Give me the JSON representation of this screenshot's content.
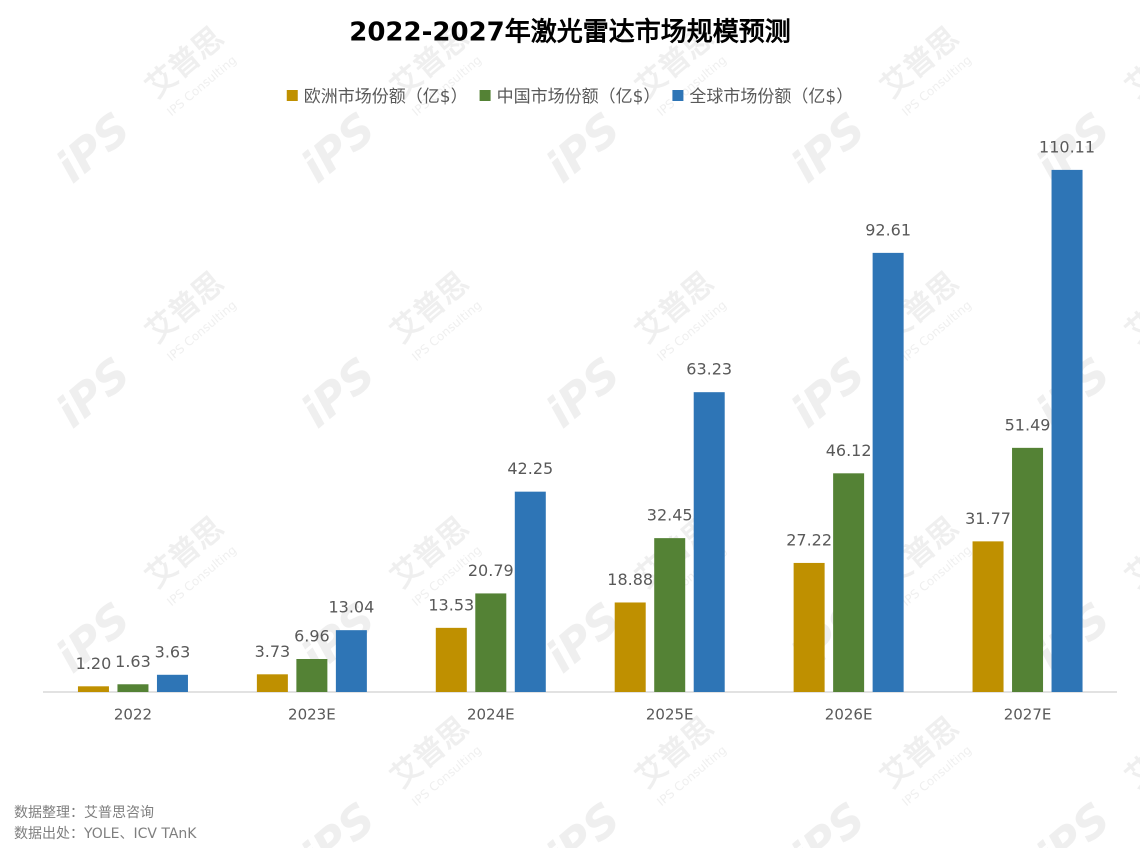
{
  "chart_data": {
    "type": "bar",
    "title": "2022-2027年激光雷达市场规模预测",
    "categories": [
      "2022",
      "2023E",
      "2024E",
      "2025E",
      "2026E",
      "2027E"
    ],
    "series": [
      {
        "name": "欧洲市场份额（亿$）",
        "color": "#bf9000",
        "values": [
          1.2,
          3.73,
          13.53,
          18.88,
          27.22,
          31.77
        ],
        "value_labels": [
          "1.20",
          "3.73",
          "13.53",
          "18.88",
          "27.22",
          "31.77"
        ]
      },
      {
        "name": "中国市场份额（亿$）",
        "color": "#548235",
        "values": [
          1.63,
          6.96,
          20.79,
          32.45,
          46.12,
          51.49
        ]
      },
      {
        "name": "全球市场份额（亿$）",
        "color": "#2e75b6",
        "values": [
          3.63,
          13.04,
          42.25,
          63.23,
          92.61,
          110.11
        ]
      }
    ],
    "ylim": [
      0,
      120
    ],
    "legend": "top",
    "notes": [
      "数据整理：艾普思咨询",
      "数据出处：YOLE、ICV TAnK"
    ]
  },
  "watermark": {
    "logo": "iPS",
    "cn": "艾普思",
    "en": "IPS Consulting"
  }
}
